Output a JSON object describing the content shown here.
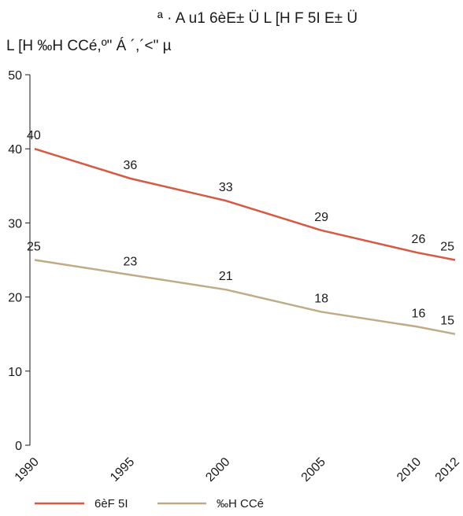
{
  "chart_data": {
    "type": "line",
    "title_lines": [
      "ª · A u1  6èE± Ü L [H F 5I   E± Ü",
      "L [H ‰H CCé,º\" Á   ´,´<\" µ"
    ],
    "x": [
      "1990",
      "1995",
      "2000",
      "2005",
      "2010",
      "2012"
    ],
    "x_values": [
      1990,
      1995,
      2000,
      2005,
      2010,
      2012
    ],
    "ylim": [
      0,
      50
    ],
    "yticks": [
      0,
      10,
      20,
      30,
      40,
      50
    ],
    "grid": false,
    "legend_position": "bottom-left",
    "series": [
      {
        "name": "6èF 5I",
        "color": "#d65a42",
        "values": [
          40,
          36,
          33,
          29,
          26,
          25
        ]
      },
      {
        "name": "‰H CCé",
        "color": "#bfac86",
        "values": [
          25,
          23,
          21,
          18,
          16,
          15
        ]
      }
    ],
    "axis_color": "#1a1a1a"
  }
}
